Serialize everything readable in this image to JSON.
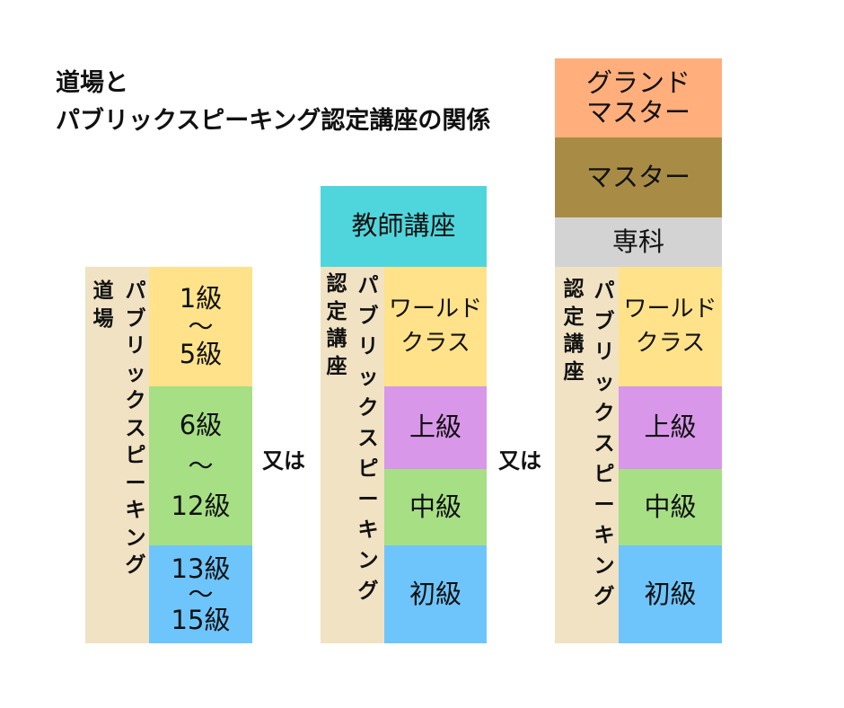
{
  "title": {
    "line1": "道場と",
    "line2": "パブリックスピーキング認定講座の関係"
  },
  "col1": {
    "label_outer": [
      "道",
      "場"
    ],
    "label_inner": [
      "パ",
      "ブ",
      "リ",
      "ッ",
      "ク",
      "ス",
      "ピ",
      "ー",
      "キ",
      "ン",
      "グ"
    ],
    "cells": [
      {
        "top": "1級",
        "mid": "〜",
        "bottom": "5級",
        "color": "#ffe28a"
      },
      {
        "top": "6級",
        "mid": "〜",
        "bottom": "12級",
        "color": "#a6df84"
      },
      {
        "top": "13級",
        "mid": "〜",
        "bottom": "15級",
        "color": "#6ec5fb"
      }
    ]
  },
  "or_label_1": "又は",
  "col2": {
    "header": "教師講座",
    "label_outer": [
      "認",
      "定",
      "講",
      "座"
    ],
    "label_inner": [
      "パ",
      "ブ",
      "リ",
      "ッ",
      "ク",
      "ス",
      "ピ",
      "ー",
      "キ",
      "ン",
      "グ"
    ],
    "cells": [
      {
        "line1": "ワールド",
        "line2": "クラス",
        "color": "#ffe28a"
      },
      {
        "line1": "上級",
        "color": "#d997ea"
      },
      {
        "line1": "中級",
        "color": "#a6df84"
      },
      {
        "line1": "初級",
        "color": "#6ec5fb"
      }
    ]
  },
  "or_label_2": "又は",
  "col3": {
    "top": {
      "line1": "グランド",
      "line2": "マスター",
      "color": "#ffae7c"
    },
    "master": {
      "label": "マスター",
      "color": "#a88c45"
    },
    "senka": {
      "label": "専科",
      "color": "#d3d3d3"
    },
    "label_outer": [
      "認",
      "定",
      "講",
      "座"
    ],
    "label_inner": [
      "パ",
      "ブ",
      "リ",
      "ッ",
      "ク",
      "ス",
      "ピ",
      "ー",
      "キ",
      "ン",
      "グ"
    ],
    "cells": [
      {
        "line1": "ワールド",
        "line2": "クラス",
        "color": "#ffe28a"
      },
      {
        "line1": "上級",
        "color": "#d997ea"
      },
      {
        "line1": "中級",
        "color": "#a6df84"
      },
      {
        "line1": "初級",
        "color": "#6ec5fb"
      }
    ]
  }
}
